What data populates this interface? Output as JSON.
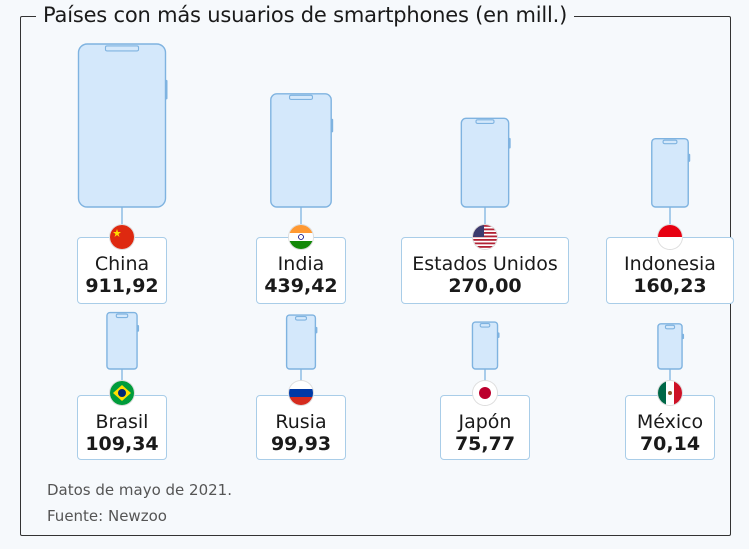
{
  "title": "Países con más usuarios de smartphones (en mill.)",
  "notes": [
    "Datos de mayo de 2021.",
    "Fuente: Newzoo"
  ],
  "colors": {
    "phone_fill": "#d4e8fb",
    "phone_stroke": "#7fb3e0",
    "label_border": "#a9cde8"
  },
  "chart_data": {
    "type": "bar",
    "title": "Países con más usuarios de smartphones (en mill.)",
    "categories": [
      "China",
      "India",
      "Estados Unidos",
      "Indonesia",
      "Brasil",
      "Rusia",
      "Japón",
      "México"
    ],
    "values": [
      911.92,
      439.42,
      270.0,
      160.23,
      109.34,
      99.93,
      75.77,
      70.14
    ],
    "value_labels": [
      "911,92",
      "439,42",
      "270,00",
      "160,23",
      "109,34",
      "99,93",
      "75,77",
      "70,14"
    ],
    "unit": "mill.",
    "flag_icons": [
      "china-flag-icon",
      "india-flag-icon",
      "usa-flag-icon",
      "indonesia-flag-icon",
      "brazil-flag-icon",
      "russia-flag-icon",
      "japan-flag-icon",
      "mexico-flag-icon"
    ]
  }
}
